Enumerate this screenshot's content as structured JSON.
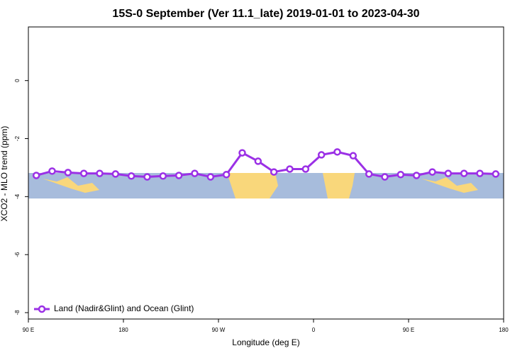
{
  "chart_data": {
    "type": "line",
    "title": "15S-0 September (Ver 11.1_late)   2019-01-01 to 2023-04-30",
    "x_label": "Longitude (deg E)",
    "y_label": "XCO2 - MLO trend (ppm)",
    "xlim": [
      90,
      540
    ],
    "xticks": [
      {
        "value": 90,
        "label": "90 E"
      },
      180,
      {
        "value": 270,
        "label": "90 W"
      },
      {
        "value": 360,
        "label": "0"
      },
      {
        "value": 450,
        "label": "90 E"
      },
      {
        "value": 540,
        "label": "180"
      }
    ],
    "ylim": [
      -8.22,
      1.85
    ],
    "yticks": [
      0,
      -2,
      -4,
      -6,
      -8
    ],
    "legend": "bottom-left",
    "series": [
      {
        "name": "Land (Nadir&Glint) and Ocean (Glint)",
        "color": "#9b30e6",
        "x": [
          97.5,
          112.5,
          127.5,
          142.5,
          157.5,
          172.5,
          187.5,
          202.5,
          217.5,
          232.5,
          247.5,
          262.5,
          277.5,
          292.5,
          307.5,
          322.5,
          337.5,
          352.5,
          367.5,
          382.5,
          397.5,
          412.5,
          427.5,
          442.5,
          457.5,
          472.5,
          487.5,
          502.5,
          517.5,
          532.5
        ],
        "values": [
          -3.27,
          -3.12,
          -3.17,
          -3.2,
          -3.2,
          -3.22,
          -3.29,
          -3.32,
          -3.29,
          -3.27,
          -3.2,
          -3.32,
          -3.24,
          -2.49,
          -2.78,
          -3.15,
          -3.05,
          -3.05,
          -2.56,
          -2.46,
          -2.59,
          -3.22,
          -3.32,
          -3.24,
          -3.27,
          -3.15,
          -3.2,
          -3.2,
          -3.2,
          -3.22
        ]
      }
    ]
  }
}
